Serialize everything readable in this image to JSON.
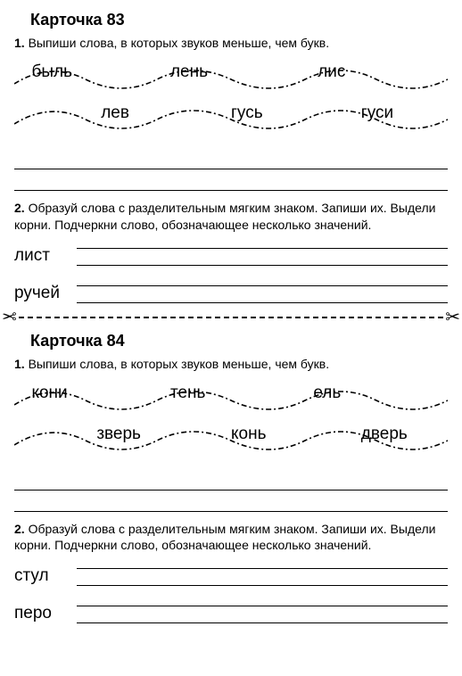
{
  "card83": {
    "title": "Карточка 83",
    "task1_num": "1.",
    "task1_text": "Выпиши слова, в которых звуков меньше, чем букв.",
    "wave": {
      "top_words": [
        "быль",
        "лень",
        "лис"
      ],
      "bottom_words": [
        "лев",
        "гусь",
        "гуси"
      ],
      "top_positions_pct": [
        4,
        36,
        70
      ],
      "bottom_positions_pct": [
        20,
        50,
        80
      ],
      "stroke_color": "#000000",
      "dash_pattern": "6 3 2 3",
      "stroke_width": 1.6
    },
    "task2_num": "2.",
    "task2_text": "Образуй слова с разделительным мягким знаком. Запиши их. Выдели корни. Подчеркни слово, обозначающее несколько значений.",
    "words": [
      "лист",
      "ручей"
    ]
  },
  "card84": {
    "title": "Карточка 84",
    "task1_num": "1.",
    "task1_text": "Выпиши слова, в которых звуков меньше, чем букв.",
    "wave": {
      "top_words": [
        "кони",
        "тень",
        "ель"
      ],
      "bottom_words": [
        "зверь",
        "конь",
        "дверь"
      ],
      "top_positions_pct": [
        4,
        36,
        69
      ],
      "bottom_positions_pct": [
        19,
        50,
        80
      ],
      "stroke_color": "#000000",
      "dash_pattern": "6 3 2 3",
      "stroke_width": 1.6
    },
    "task2_num": "2.",
    "task2_text": "Образуй слова с разделительным мягким знаком. Запиши их. Выдели корни. Подчеркни слово, обозначающее несколько значений.",
    "words": [
      "стул",
      "перо"
    ]
  },
  "scissors_glyph": "✂"
}
